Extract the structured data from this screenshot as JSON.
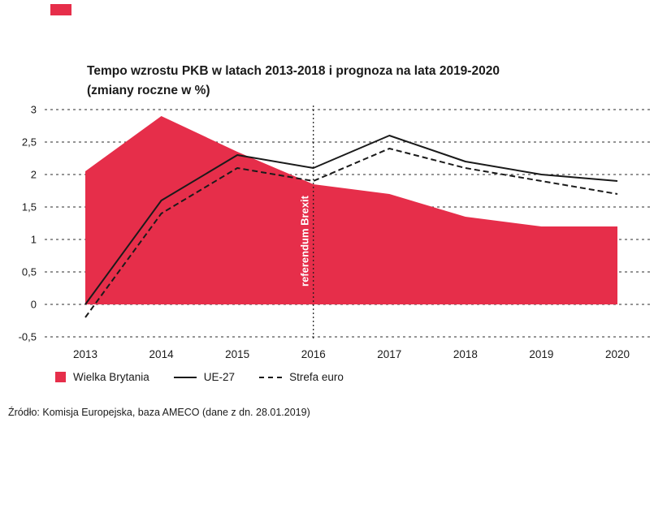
{
  "colors": {
    "red": "#e62e4a",
    "ink": "#1a1a1a"
  },
  "header": {
    "title": "Tempo wzrostu PKB w latach 2013-2018 i prognoza na lata 2019-2020",
    "subtitle": "(zmiany roczne w %)"
  },
  "legend": {
    "items": [
      {
        "label": "Wielka Brytania",
        "swatch": "area"
      },
      {
        "label": "UE-27",
        "swatch": "solid-line"
      },
      {
        "label": "Strefa euro",
        "swatch": "dashed-line"
      }
    ]
  },
  "source": "Źródło: Komisja Europejska, baza AMECO (dane z dn. 28.01.2019)",
  "chart_data": {
    "type": "area+line",
    "title": "Tempo wzrostu PKB w latach 2013-2018 i prognoza na lata 2019-2020",
    "subtitle": "(zmiany roczne w %)",
    "categories": [
      "2013",
      "2014",
      "2015",
      "2016",
      "2017",
      "2018",
      "2019",
      "2020"
    ],
    "ylim": [
      -0.5,
      3
    ],
    "grid": "horizontal-dashed",
    "legend_position": "bottom",
    "yticks": [
      {
        "value": 3,
        "label": "3"
      },
      {
        "value": 2.5,
        "label": "2,5"
      },
      {
        "value": 2,
        "label": "2"
      },
      {
        "value": 1.5,
        "label": "1,5"
      },
      {
        "value": 1,
        "label": "1"
      },
      {
        "value": 0.5,
        "label": "0,5"
      },
      {
        "value": 0,
        "label": "0"
      },
      {
        "value": -0.5,
        "label": "-0,5"
      }
    ],
    "series": [
      {
        "name": "Wielka Brytania",
        "type": "area",
        "line_style": "none",
        "color": "#e62e4a",
        "values": [
          2.05,
          2.9,
          2.35,
          1.85,
          1.7,
          1.35,
          1.2,
          1.2
        ]
      },
      {
        "name": "UE-27",
        "type": "line",
        "line_style": "solid",
        "color": "#1a1a1a",
        "values": [
          0.0,
          1.6,
          2.3,
          2.1,
          2.6,
          2.2,
          2.0,
          1.9
        ]
      },
      {
        "name": "Strefa euro",
        "type": "line",
        "line_style": "dashed",
        "color": "#1a1a1a",
        "values": [
          -0.2,
          1.4,
          2.1,
          1.9,
          2.4,
          2.1,
          1.9,
          1.7
        ]
      }
    ],
    "annotation": {
      "x": "2016",
      "label": "referendum Brexit"
    }
  }
}
